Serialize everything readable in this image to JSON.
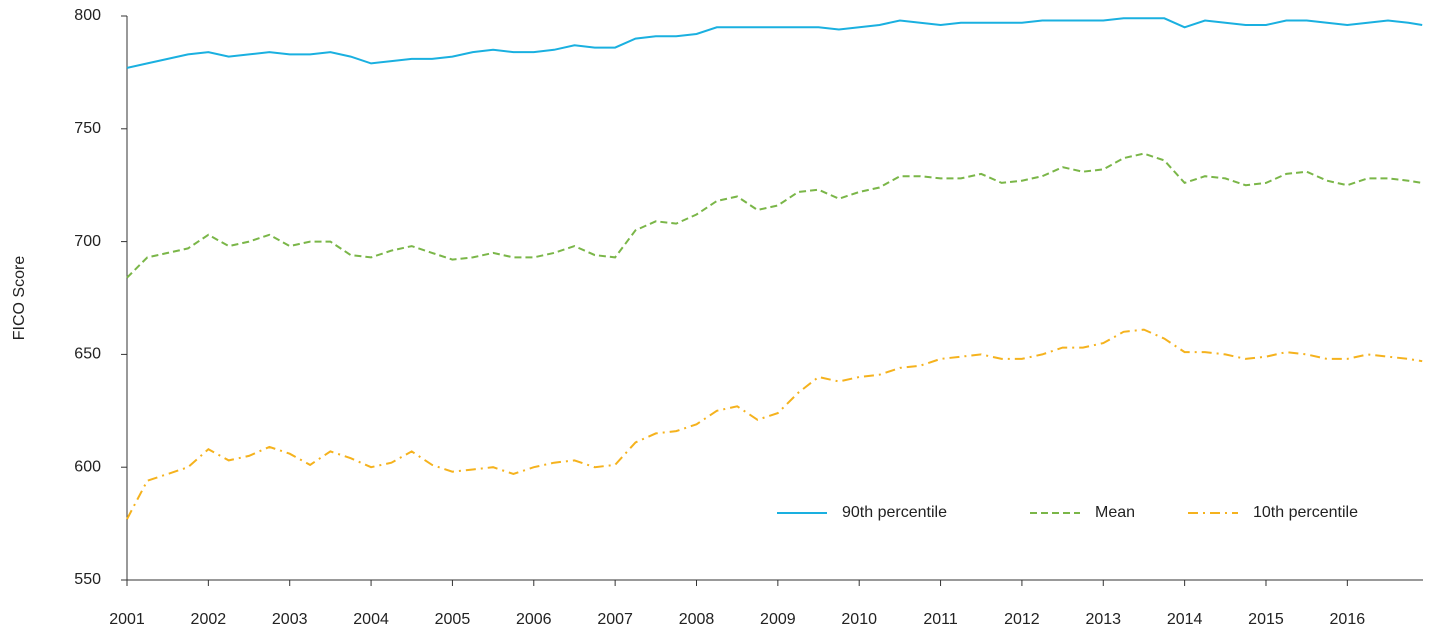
{
  "chart_data": {
    "type": "line",
    "y_label": "FICO Score",
    "x": [
      2001,
      2001.25,
      2001.5,
      2001.75,
      2002,
      2002.25,
      2002.5,
      2002.75,
      2003,
      2003.25,
      2003.5,
      2003.75,
      2004,
      2004.25,
      2004.5,
      2004.75,
      2005,
      2005.25,
      2005.5,
      2005.75,
      2006,
      2006.25,
      2006.5,
      2006.75,
      2007,
      2007.25,
      2007.5,
      2007.75,
      2008,
      2008.25,
      2008.5,
      2008.75,
      2009,
      2009.25,
      2009.5,
      2009.75,
      2010,
      2010.25,
      2010.5,
      2010.75,
      2011,
      2011.25,
      2011.5,
      2011.75,
      2012,
      2012.25,
      2012.5,
      2012.75,
      2013,
      2013.25,
      2013.5,
      2013.75,
      2014,
      2014.25,
      2014.5,
      2014.75,
      2015,
      2015.25,
      2015.5,
      2015.75,
      2016,
      2016.25,
      2016.5,
      2016.75,
      2016.92
    ],
    "series": [
      {
        "name": "90th percentile",
        "color": "#1ab0e0",
        "dash": "solid",
        "values": [
          777,
          779,
          781,
          783,
          784,
          782,
          783,
          784,
          783,
          783,
          784,
          782,
          779,
          780,
          781,
          781,
          782,
          784,
          785,
          784,
          784,
          785,
          787,
          786,
          786,
          790,
          791,
          791,
          792,
          795,
          795,
          795,
          795,
          795,
          795,
          794,
          795,
          796,
          798,
          797,
          796,
          797,
          797,
          797,
          797,
          798,
          798,
          798,
          798,
          799,
          799,
          799,
          795,
          798,
          797,
          796,
          796,
          798,
          798,
          797,
          796,
          797,
          798,
          797,
          796
        ]
      },
      {
        "name": "Mean",
        "color": "#7ab648",
        "dash": "dashed",
        "values": [
          684,
          693,
          695,
          697,
          703,
          698,
          700,
          703,
          698,
          700,
          700,
          694,
          693,
          696,
          698,
          695,
          692,
          693,
          695,
          693,
          693,
          695,
          698,
          694,
          693,
          705,
          709,
          708,
          712,
          718,
          720,
          714,
          716,
          722,
          723,
          719,
          722,
          724,
          729,
          729,
          728,
          728,
          730,
          726,
          727,
          729,
          733,
          731,
          732,
          737,
          739,
          736,
          726,
          729,
          728,
          725,
          726,
          730,
          731,
          727,
          725,
          728,
          728,
          727,
          726
        ]
      },
      {
        "name": "10th percentile",
        "color": "#f5b21d",
        "dash": "dash-dot",
        "values": [
          577,
          594,
          597,
          600,
          608,
          603,
          605,
          609,
          606,
          601,
          607,
          604,
          600,
          602,
          607,
          601,
          598,
          599,
          600,
          597,
          600,
          602,
          603,
          600,
          601,
          611,
          615,
          616,
          619,
          625,
          627,
          621,
          624,
          633,
          640,
          638,
          640,
          641,
          644,
          645,
          648,
          649,
          650,
          648,
          648,
          650,
          653,
          653,
          655,
          660,
          661,
          657,
          651,
          651,
          650,
          648,
          649,
          651,
          650,
          648,
          648,
          650,
          649,
          648,
          647
        ]
      }
    ],
    "xlim": [
      2001,
      2016.93
    ],
    "xticks": [
      2001,
      2002,
      2003,
      2004,
      2005,
      2006,
      2007,
      2008,
      2009,
      2010,
      2011,
      2012,
      2013,
      2014,
      2015,
      2016
    ],
    "ylim": [
      550,
      800
    ],
    "yticks": [
      550,
      600,
      650,
      700,
      750,
      800
    ],
    "grid": false,
    "legend": "lower right"
  }
}
